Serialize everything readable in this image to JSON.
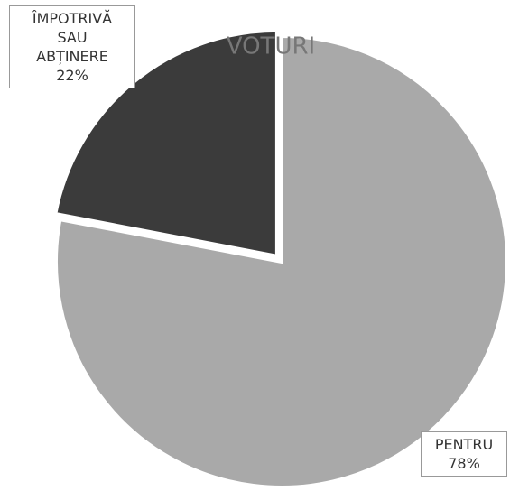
{
  "chart_data": {
    "type": "pie",
    "title": "VOTURI",
    "categories": [
      "PENTRU",
      "ÎMPOTRIVĂ SAU ABȚINERE"
    ],
    "values": [
      78,
      22
    ],
    "value_labels": [
      "78%",
      "22%"
    ],
    "colors": [
      "#a9a9a9",
      "#3b3b3b"
    ]
  }
}
